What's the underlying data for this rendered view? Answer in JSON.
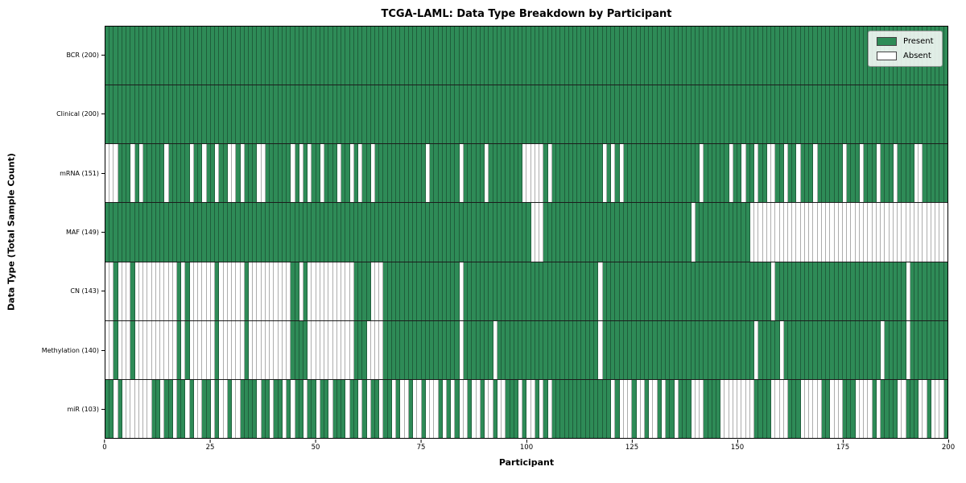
{
  "chart_data": {
    "type": "heatmap",
    "title": "TCGA-LAML: Data Type Breakdown by Participant",
    "xlabel": "Participant",
    "ylabel": "Data Type (Total Sample Count)",
    "n_participants": 200,
    "x_ticks": [
      0,
      25,
      50,
      75,
      100,
      125,
      150,
      175,
      200
    ],
    "colors": {
      "present": "#2e8b57",
      "absent": "#ffffff",
      "grid_line": "rgba(0,0,0,0.32)",
      "row_separator": "#1c1c1c"
    },
    "legend": [
      {
        "label": "Present",
        "color": "#2e8b57"
      },
      {
        "label": "Absent",
        "color": "#ffffff"
      }
    ],
    "legend_position": "upper right",
    "rows": [
      {
        "label": "BCR (200)",
        "data_type": "BCR",
        "present_count": 200,
        "absent": []
      },
      {
        "label": "Clinical (200)",
        "data_type": "Clinical",
        "present_count": 200,
        "absent": []
      },
      {
        "label": "mRNA (151)",
        "data_type": "mRNA",
        "present_count": 151,
        "absent": [
          0,
          1,
          2,
          6,
          8,
          14,
          20,
          23,
          26,
          29,
          30,
          32,
          36,
          37,
          44,
          46,
          48,
          51,
          55,
          58,
          60,
          63,
          76,
          84,
          90,
          99,
          100,
          101,
          102,
          103,
          105,
          118,
          120,
          122,
          141,
          148,
          151,
          154,
          157,
          158,
          161,
          164,
          168,
          175,
          179,
          183,
          187,
          192,
          193
        ]
      },
      {
        "label": "MAF (149)",
        "data_type": "MAF",
        "present_count": 149,
        "absent": [
          101,
          102,
          103,
          139,
          153,
          154,
          155,
          156,
          157,
          158,
          159,
          160,
          161,
          162,
          163,
          164,
          165,
          166,
          167,
          168,
          169,
          170,
          171,
          172,
          173,
          174,
          175,
          176,
          177,
          178,
          179,
          180,
          181,
          182,
          183,
          184,
          185,
          186,
          187,
          188,
          189,
          190,
          191,
          192,
          193,
          194,
          195,
          196,
          197,
          198,
          199
        ]
      },
      {
        "label": "CN (143)",
        "data_type": "CN",
        "present_count": 143,
        "absent": [
          0,
          1,
          3,
          4,
          5,
          7,
          8,
          9,
          10,
          11,
          12,
          13,
          14,
          15,
          16,
          18,
          20,
          21,
          22,
          23,
          24,
          25,
          27,
          28,
          29,
          30,
          31,
          32,
          34,
          35,
          36,
          37,
          38,
          39,
          40,
          41,
          42,
          43,
          46,
          48,
          49,
          50,
          51,
          52,
          53,
          54,
          55,
          56,
          57,
          58,
          63,
          64,
          65,
          84,
          117,
          158,
          190
        ]
      },
      {
        "label": "Methylation (140)",
        "data_type": "Methylation",
        "present_count": 140,
        "absent": [
          0,
          1,
          3,
          4,
          5,
          7,
          8,
          9,
          10,
          11,
          12,
          13,
          14,
          15,
          16,
          18,
          20,
          21,
          22,
          23,
          24,
          25,
          27,
          28,
          29,
          30,
          31,
          32,
          34,
          35,
          36,
          37,
          38,
          39,
          40,
          41,
          42,
          43,
          48,
          49,
          50,
          51,
          52,
          53,
          54,
          55,
          56,
          57,
          58,
          62,
          63,
          64,
          65,
          84,
          92,
          117,
          154,
          160,
          184,
          190
        ]
      },
      {
        "label": "miR (103)",
        "data_type": "miR",
        "present_count": 103,
        "absent": [
          2,
          4,
          5,
          6,
          7,
          8,
          9,
          10,
          13,
          16,
          19,
          21,
          22,
          25,
          27,
          28,
          30,
          31,
          36,
          39,
          42,
          44,
          47,
          50,
          53,
          57,
          60,
          62,
          65,
          68,
          70,
          71,
          73,
          74,
          76,
          77,
          78,
          80,
          82,
          84,
          85,
          87,
          88,
          90,
          91,
          93,
          94,
          98,
          100,
          101,
          103,
          105,
          120,
          122,
          123,
          124,
          126,
          127,
          129,
          130,
          132,
          135,
          139,
          140,
          141,
          146,
          147,
          148,
          149,
          150,
          151,
          152,
          153,
          158,
          159,
          160,
          161,
          165,
          166,
          167,
          168,
          169,
          172,
          173,
          174,
          178,
          179,
          180,
          181,
          183,
          188,
          189,
          193,
          194,
          196,
          197,
          198
        ]
      }
    ]
  }
}
